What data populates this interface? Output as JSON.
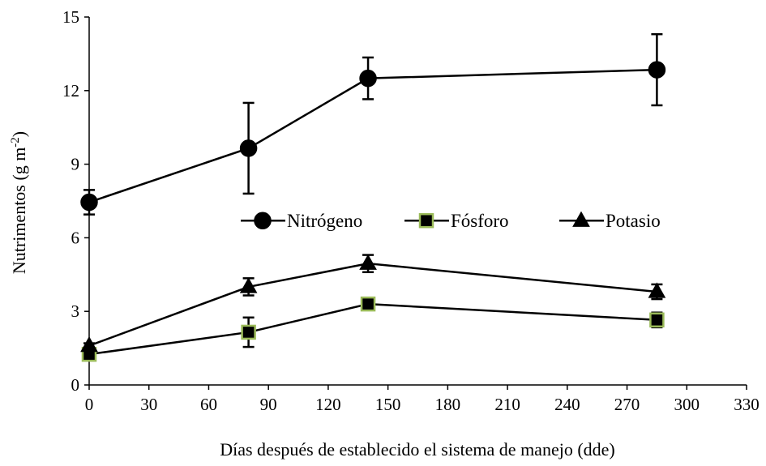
{
  "chart_data": {
    "type": "line",
    "title": "",
    "xlabel": "Días después de establecido el sistema de manejo (dde)",
    "ylabel": {
      "prefix": "Nutrimentos (g m",
      "sup": "-2",
      "suffix": ")"
    },
    "xlim": [
      0,
      330
    ],
    "ylim": [
      0,
      15
    ],
    "xticks": [
      0,
      30,
      60,
      90,
      120,
      150,
      180,
      210,
      240,
      270,
      300,
      330
    ],
    "yticks": [
      0,
      3,
      6,
      9,
      12,
      15
    ],
    "x": [
      0,
      80,
      140,
      285
    ],
    "grid": false,
    "legend_position": "center",
    "series": [
      {
        "name": "Nitrógeno",
        "marker": "circle",
        "fill": "#000000",
        "stroke": "#000000",
        "values": [
          7.45,
          9.65,
          12.5,
          12.85
        ],
        "errors": [
          0.5,
          1.85,
          0.85,
          1.45
        ]
      },
      {
        "name": "Fósforo",
        "marker": "square",
        "fill": "#000000",
        "stroke": "#9bbb59",
        "values": [
          1.25,
          2.15,
          3.3,
          2.65
        ],
        "errors": [
          0.15,
          0.6,
          0.1,
          0.3
        ]
      },
      {
        "name": "Potasio",
        "marker": "triangle",
        "fill": "#000000",
        "stroke": "#000000",
        "values": [
          1.6,
          4.0,
          4.95,
          3.8
        ],
        "errors": [
          0.1,
          0.35,
          0.35,
          0.3
        ]
      }
    ]
  }
}
